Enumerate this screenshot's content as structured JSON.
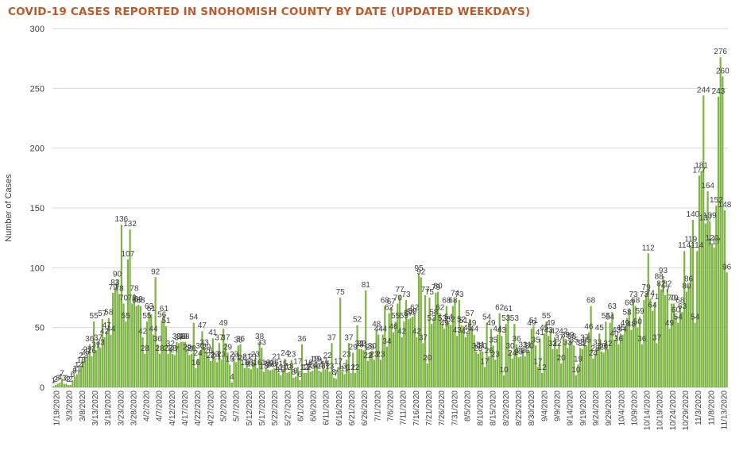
{
  "colors": {
    "title": "#c0592a",
    "bar": "#7cb342",
    "axis_text": "#404040",
    "grid": "#d9d9d9"
  },
  "chart_data": {
    "type": "bar",
    "title": "COVID-19 CASES REPORTED IN SNOHOMISH COUNTY BY DATE (UPDATED WEEKDAYS)",
    "xlabel": "",
    "ylabel": "Number of Cases",
    "ylim": [
      0,
      300
    ],
    "yticks": [
      0,
      50,
      100,
      150,
      200,
      250,
      300
    ],
    "grid": true,
    "x_tick_labels": [
      "1/19/2020",
      "3/3/2020",
      "3/8/2020",
      "3/13/2020",
      "3/18/2020",
      "3/23/2020",
      "3/28/2020",
      "4/2/2020",
      "4/7/2020",
      "4/12/2020",
      "4/17/2020",
      "4/22/2020",
      "4/27/2020",
      "5/2/2020",
      "5/7/2020",
      "5/12/2020",
      "5/17/2020",
      "5/22/2020",
      "5/27/2020",
      "6/1/2020",
      "6/6/2020",
      "6/11/2020",
      "6/16/2020",
      "6/21/2020",
      "6/26/2020",
      "7/1/2020",
      "7/6/2020",
      "7/11/2020",
      "7/16/2020",
      "7/21/2020",
      "7/26/2020",
      "7/31/2020",
      "8/5/2020",
      "8/10/2020",
      "8/15/2020",
      "8/20/2020",
      "8/25/2020",
      "8/30/2020",
      "9/4/2020",
      "9/9/2020",
      "9/14/2020",
      "9/19/2020",
      "9/24/2020",
      "9/29/2020",
      "10/4/2020",
      "10/9/2020",
      "10/14/2020",
      "10/19/2020",
      "10/24/2020",
      "10/29/2020",
      "11/3/2020",
      "11/8/2020",
      "11/13/2020"
    ],
    "values": [
      1,
      2,
      3,
      4,
      7,
      3,
      3,
      2,
      2,
      6,
      9,
      11,
      14,
      18,
      22,
      25,
      27,
      36,
      26,
      55,
      31,
      37,
      33,
      57,
      42,
      47,
      58,
      44,
      79,
      83,
      90,
      78,
      136,
      70,
      55,
      107,
      132,
      70,
      78,
      68,
      69,
      68,
      42,
      28,
      55,
      63,
      61,
      44,
      92,
      36,
      28,
      56,
      61,
      51,
      28,
      32,
      28,
      27,
      38,
      37,
      38,
      38,
      38,
      29,
      27,
      28,
      54,
      16,
      24,
      30,
      47,
      33,
      29,
      26,
      22,
      41,
      23,
      21,
      37,
      23,
      49,
      37,
      29,
      19,
      4,
      23,
      21,
      35,
      36,
      20,
      16,
      21,
      16,
      15,
      21,
      23,
      16,
      38,
      33,
      13,
      16,
      15,
      14,
      15,
      16,
      21,
      12,
      10,
      15,
      24,
      12,
      13,
      23,
      8,
      9,
      17,
      6,
      36,
      12,
      12,
      16,
      13,
      14,
      19,
      19,
      14,
      13,
      17,
      15,
      22,
      13,
      37,
      8,
      7,
      17,
      75,
      13,
      11,
      23,
      37,
      12,
      29,
      12,
      52,
      32,
      32,
      31,
      81,
      22,
      29,
      30,
      23,
      48,
      44,
      23,
      44,
      68,
      34,
      62,
      67,
      46,
      55,
      70,
      77,
      42,
      55,
      73,
      57,
      58,
      59,
      62,
      42,
      95,
      92,
      37,
      77,
      20,
      75,
      53,
      58,
      79,
      80,
      62,
      53,
      49,
      68,
      54,
      52,
      68,
      74,
      43,
      73,
      52,
      51,
      42,
      45,
      57,
      49,
      44,
      30,
      28,
      31,
      30,
      17,
      54,
      26,
      49,
      35,
      23,
      44,
      62,
      43,
      10,
      53,
      61,
      30,
      24,
      53,
      36,
      25,
      26,
      31,
      26,
      31,
      30,
      49,
      51,
      35,
      17,
      41,
      12,
      45,
      55,
      43,
      49,
      32,
      42,
      32,
      37,
      20,
      42,
      39,
      33,
      39,
      38,
      35,
      10,
      19,
      33,
      32,
      37,
      35,
      46,
      68,
      24,
      28,
      33,
      45,
      30,
      29,
      55,
      32,
      54,
      63,
      40,
      43,
      36,
      45,
      44,
      49,
      58,
      66,
      48,
      73,
      68,
      50,
      59,
      36,
      73,
      79,
      112,
      74,
      64,
      71,
      37,
      88,
      82,
      93,
      77,
      82,
      49,
      70,
      70,
      60,
      54,
      68,
      63,
      114,
      80,
      86,
      119,
      140,
      54,
      114,
      177,
      181,
      244,
      137,
      164,
      139,
      120,
      117,
      152,
      243,
      276,
      260,
      148,
      96
    ]
  }
}
